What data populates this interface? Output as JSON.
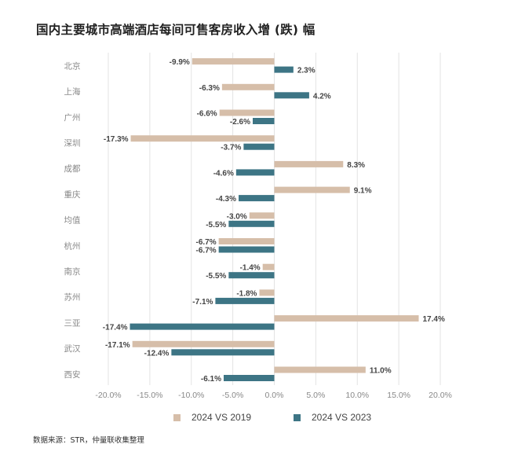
{
  "title": "国内主要城市高端酒店每间可售客房收入增 (跌) 幅",
  "source": "数据来源：STR，仲量联收集整理",
  "colors": {
    "series_2019": "#d6bea9",
    "series_2023": "#3d7585",
    "grid": "#e3e3e3",
    "axis_text": "#888888",
    "label_text": "#444444"
  },
  "chart_data": {
    "type": "bar",
    "orientation": "horizontal",
    "title": "国内主要城市高端酒店每间可售客房收入增 (跌) 幅",
    "xlabel": "",
    "ylabel": "",
    "xlim": [
      -20,
      20
    ],
    "x_ticks": [
      "-20.0%",
      "-15.0%",
      "-10.0%",
      "-5.0%",
      "0.0%",
      "5.0%",
      "10.0%",
      "15.0%",
      "20.0%"
    ],
    "grid": true,
    "legend_position": "bottom",
    "categories": [
      "北京",
      "上海",
      "广州",
      "深圳",
      "成都",
      "重庆",
      "均值",
      "杭州",
      "南京",
      "苏州",
      "三亚",
      "武汉",
      "西安"
    ],
    "series": [
      {
        "name": "2024 VS 2019",
        "values": [
          -9.9,
          -6.3,
          -6.6,
          -17.3,
          8.3,
          9.1,
          -3.0,
          -6.7,
          -1.4,
          -1.8,
          17.4,
          -17.1,
          11.0
        ],
        "labels": [
          "-9.9%",
          "-6.3%",
          "-6.6%",
          "-17.3%",
          "8.3%",
          "9.1%",
          "-3.0%",
          "-6.7%",
          "-1.4%",
          "-1.8%",
          "17.4%",
          "-17.1%",
          "11.0%"
        ]
      },
      {
        "name": "2024 VS 2023",
        "values": [
          2.3,
          4.2,
          -2.6,
          -3.7,
          -4.6,
          -4.3,
          -5.5,
          -6.7,
          -5.5,
          -7.1,
          -17.4,
          -12.4,
          -6.1
        ],
        "labels": [
          "2.3%",
          "4.2%",
          "-2.6%",
          "-3.7%",
          "-4.6%",
          "-4.3%",
          "-5.5%",
          "-6.7%",
          "-5.5%",
          "-7.1%",
          "-17.4%",
          "-12.4%",
          "-6.1%"
        ]
      }
    ]
  }
}
